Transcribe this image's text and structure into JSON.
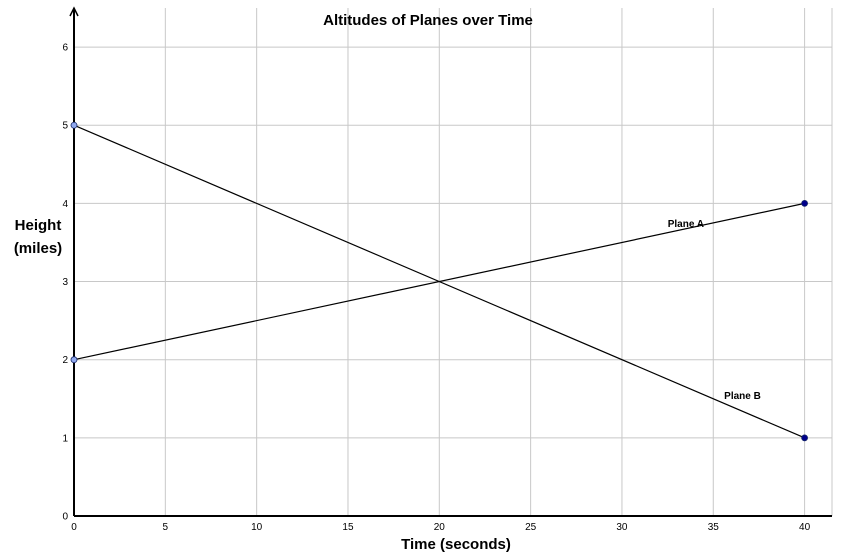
{
  "chart_data": {
    "type": "line",
    "title": "Altitudes of Planes over Time",
    "xlabel": "Time (seconds)",
    "ylabel_line1": "Height",
    "ylabel_line2": "(miles)",
    "xlim": [
      0,
      41.5
    ],
    "ylim": [
      0,
      6.5
    ],
    "xticks": [
      0,
      5,
      10,
      15,
      20,
      25,
      30,
      35,
      40
    ],
    "yticks": [
      0,
      1,
      2,
      3,
      4,
      5,
      6
    ],
    "grid": true,
    "series": [
      {
        "name": "Plane A",
        "x": [
          0,
          40
        ],
        "y": [
          2,
          4
        ],
        "label_at": [
          33.5,
          3.7
        ]
      },
      {
        "name": "Plane B",
        "x": [
          0,
          40
        ],
        "y": [
          5,
          1
        ],
        "label_at": [
          36.6,
          1.5
        ]
      }
    ],
    "colors": {
      "line": "#000000",
      "grid": "#c8c8c8",
      "point_start": "#8fa8ee",
      "point_end": "#00008b"
    }
  }
}
